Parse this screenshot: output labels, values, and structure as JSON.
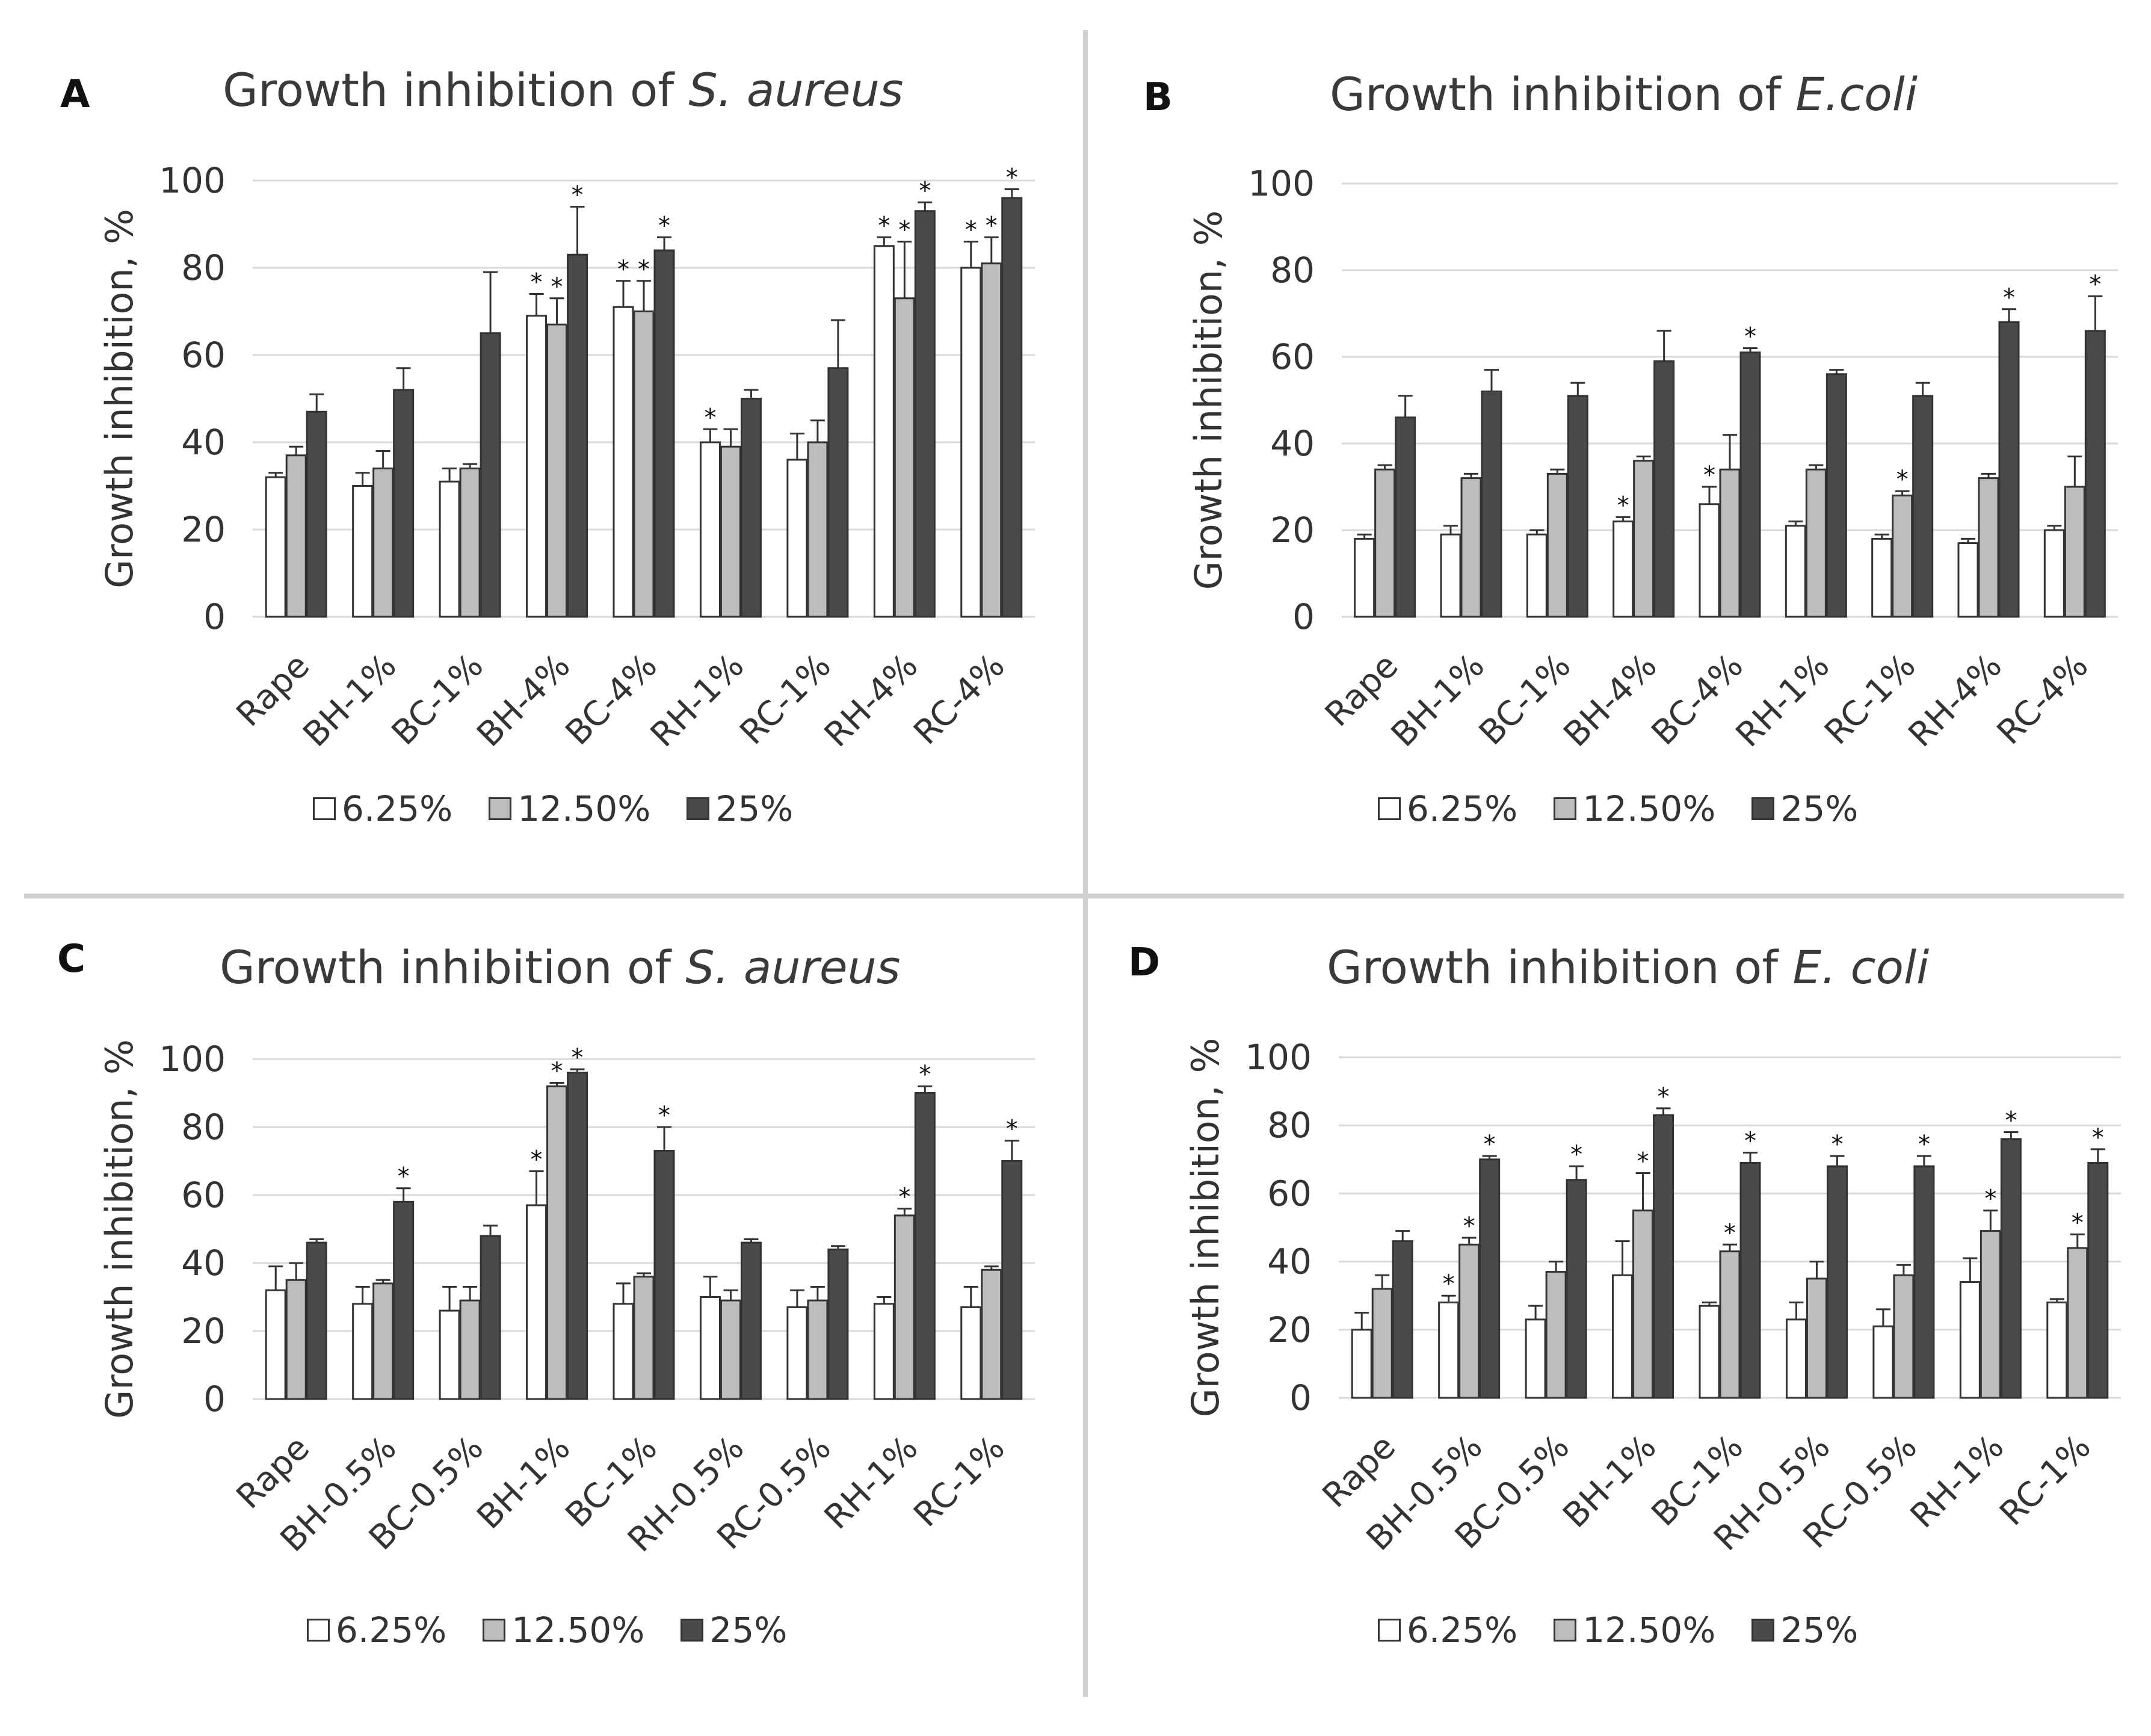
{
  "colors": {
    "series": [
      "#ffffff",
      "#bdbdbd",
      "#4a4a4a"
    ],
    "grid": "#d9d9d9",
    "axis_text": "#333333",
    "bar_stroke": "#333333",
    "divider": "#d0d0d0"
  },
  "legend": {
    "labels": [
      "6.25%",
      "12.50%",
      "25%"
    ]
  },
  "panels": [
    {
      "letter": "A",
      "title_prefix": "Growth inhibition of ",
      "title_organism": "S. aureus",
      "ylabel": "Growth inhibition, %"
    },
    {
      "letter": "B",
      "title_prefix": "Growth inhibition of ",
      "title_organism": "E.coli",
      "ylabel": "Growth inhibition, %"
    },
    {
      "letter": "C",
      "title_prefix": "Growth inhibition of ",
      "title_organism": "S. aureus",
      "ylabel": "Growth inhibition, %"
    },
    {
      "letter": "D",
      "title_prefix": "Growth inhibition of ",
      "title_organism": "E. coli",
      "ylabel": "Growth inhibition, %"
    }
  ],
  "chart_data": [
    {
      "type": "bar",
      "title": "Growth inhibition of S. aureus",
      "panel": "A",
      "xlabel": "",
      "ylabel": "Growth inhibition, %",
      "ylim": [
        0,
        100
      ],
      "yticks": [
        0,
        20,
        40,
        60,
        80,
        100
      ],
      "grid": true,
      "legend_position": "bottom",
      "categories": [
        "Rape",
        "BH-1%",
        "BC-1%",
        "BH-4%",
        "BC-4%",
        "RH-1%",
        "RC-1%",
        "RH-4%",
        "RC-4%"
      ],
      "series": [
        {
          "name": "6.25%",
          "values": [
            32,
            30,
            31,
            69,
            71,
            40,
            36,
            85,
            80
          ],
          "errors": [
            1,
            3,
            3,
            5,
            6,
            3,
            6,
            2,
            6
          ],
          "significant": [
            false,
            false,
            false,
            true,
            true,
            true,
            false,
            true,
            true
          ]
        },
        {
          "name": "12.50%",
          "values": [
            37,
            34,
            34,
            67,
            70,
            39,
            40,
            73,
            81
          ],
          "errors": [
            2,
            4,
            1,
            6,
            7,
            4,
            5,
            13,
            6
          ],
          "significant": [
            false,
            false,
            false,
            true,
            true,
            false,
            false,
            true,
            true
          ]
        },
        {
          "name": "25%",
          "values": [
            47,
            52,
            65,
            83,
            84,
            50,
            57,
            93,
            96
          ],
          "errors": [
            4,
            5,
            14,
            11,
            3,
            2,
            11,
            2,
            2
          ],
          "significant": [
            false,
            false,
            false,
            true,
            true,
            false,
            false,
            true,
            true
          ]
        }
      ]
    },
    {
      "type": "bar",
      "title": "Growth inhibition of E.coli",
      "panel": "B",
      "xlabel": "",
      "ylabel": "Growth inhibition, %",
      "ylim": [
        0,
        100
      ],
      "yticks": [
        0,
        20,
        40,
        60,
        80,
        100
      ],
      "grid": true,
      "legend_position": "bottom",
      "categories": [
        "Rape",
        "BH-1%",
        "BC-1%",
        "BH-4%",
        "BC-4%",
        "RH-1%",
        "RC-1%",
        "RH-4%",
        "RC-4%"
      ],
      "series": [
        {
          "name": "6.25%",
          "values": [
            18,
            19,
            19,
            22,
            26,
            21,
            18,
            17,
            20
          ],
          "errors": [
            1,
            2,
            1,
            1,
            4,
            1,
            1,
            1,
            1
          ],
          "significant": [
            false,
            false,
            false,
            true,
            true,
            false,
            false,
            false,
            false
          ]
        },
        {
          "name": "12.50%",
          "values": [
            34,
            32,
            33,
            36,
            34,
            34,
            28,
            32,
            30
          ],
          "errors": [
            1,
            1,
            1,
            1,
            8,
            1,
            1,
            1,
            7
          ],
          "significant": [
            false,
            false,
            false,
            false,
            false,
            false,
            true,
            false,
            false
          ]
        },
        {
          "name": "25%",
          "values": [
            46,
            52,
            51,
            59,
            61,
            56,
            51,
            68,
            66
          ],
          "errors": [
            5,
            5,
            3,
            7,
            1,
            1,
            3,
            3,
            8
          ],
          "significant": [
            false,
            false,
            false,
            false,
            true,
            false,
            false,
            true,
            true
          ]
        }
      ]
    },
    {
      "type": "bar",
      "title": "Growth inhibition of S. aureus",
      "panel": "C",
      "xlabel": "",
      "ylabel": "Growth inhibition, %",
      "ylim": [
        0,
        100
      ],
      "yticks": [
        0,
        20,
        40,
        60,
        80,
        100
      ],
      "grid": true,
      "legend_position": "bottom",
      "categories": [
        "Rape",
        "BH-0.5%",
        "BC-0.5%",
        "BH-1%",
        "BC-1%",
        "RH-0.5%",
        "RC-0.5%",
        "RH-1%",
        "RC-1%"
      ],
      "series": [
        {
          "name": "6.25%",
          "values": [
            32,
            28,
            26,
            57,
            28,
            30,
            27,
            28,
            27
          ],
          "errors": [
            7,
            5,
            7,
            10,
            6,
            6,
            5,
            2,
            6
          ],
          "significant": [
            false,
            false,
            false,
            true,
            false,
            false,
            false,
            false,
            false
          ]
        },
        {
          "name": "12.50%",
          "values": [
            35,
            34,
            29,
            92,
            36,
            29,
            29,
            54,
            38
          ],
          "errors": [
            5,
            1,
            4,
            1,
            1,
            3,
            4,
            2,
            1
          ],
          "significant": [
            false,
            false,
            false,
            true,
            false,
            false,
            false,
            true,
            false
          ]
        },
        {
          "name": "25%",
          "values": [
            46,
            58,
            48,
            96,
            73,
            46,
            44,
            90,
            70
          ],
          "errors": [
            1,
            4,
            3,
            1,
            7,
            1,
            1,
            2,
            6
          ],
          "significant": [
            false,
            true,
            false,
            true,
            true,
            false,
            false,
            true,
            true
          ]
        }
      ]
    },
    {
      "type": "bar",
      "title": "Growth inhibition of E. coli",
      "panel": "D",
      "xlabel": "",
      "ylabel": "Growth inhibition, %",
      "ylim": [
        0,
        100
      ],
      "yticks": [
        0,
        20,
        40,
        60,
        80,
        100
      ],
      "grid": true,
      "legend_position": "bottom",
      "categories": [
        "Rape",
        "BH-0.5%",
        "BC-0.5%",
        "BH-1%",
        "BC-1%",
        "RH-0.5%",
        "RC-0.5%",
        "RH-1%",
        "RC-1%"
      ],
      "series": [
        {
          "name": "6.25%",
          "values": [
            20,
            28,
            23,
            36,
            27,
            23,
            21,
            34,
            28
          ],
          "errors": [
            5,
            2,
            4,
            10,
            1,
            5,
            5,
            7,
            1
          ],
          "significant": [
            false,
            true,
            false,
            false,
            false,
            false,
            false,
            false,
            false
          ]
        },
        {
          "name": "12.50%",
          "values": [
            32,
            45,
            37,
            55,
            43,
            35,
            36,
            49,
            44
          ],
          "errors": [
            4,
            2,
            3,
            11,
            2,
            5,
            3,
            6,
            4
          ],
          "significant": [
            false,
            true,
            false,
            true,
            true,
            false,
            false,
            true,
            true
          ]
        },
        {
          "name": "25%",
          "values": [
            46,
            70,
            64,
            83,
            69,
            68,
            68,
            76,
            69
          ],
          "errors": [
            3,
            1,
            4,
            2,
            3,
            3,
            3,
            2,
            4
          ],
          "significant": [
            false,
            true,
            true,
            true,
            true,
            true,
            true,
            true,
            true
          ]
        }
      ]
    }
  ]
}
